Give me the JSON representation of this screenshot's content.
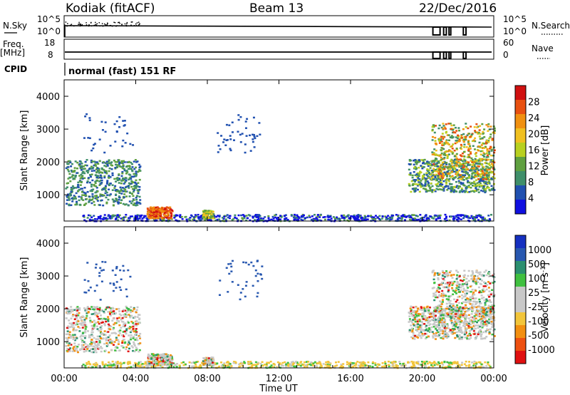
{
  "header": {
    "title": "Kodiak (fitACF)",
    "beam": "Beam 13",
    "date": "22/Dec/2016"
  },
  "params": {
    "nsky_label": "N.Sky",
    "nsky_ticks": [
      "10^5",
      "10^0"
    ],
    "nsearch_label": "N.Search",
    "nsearch_ticks": [
      "10^5",
      "10^0"
    ],
    "freq_label_1": "Freq.",
    "freq_label_2": "[MHz]",
    "freq_ticks": [
      "18",
      "8"
    ],
    "nave_label": "Nave",
    "nave_ticks": [
      "60",
      "0"
    ],
    "cpid_label": "CPID",
    "cpid_text": "normal (fast) 151 RF"
  },
  "colors": {
    "power": [
      "#1010e0",
      "#2050b0",
      "#3f8f6a",
      "#5fa040",
      "#b8d020",
      "#f0c020",
      "#f09010",
      "#e85010",
      "#d01010"
    ],
    "velocity": [
      "#e01010",
      "#ee5010",
      "#f28f10",
      "#f2c53a",
      "#c8c8c8",
      "#c8c8c8",
      "#40c040",
      "#2b8f70",
      "#2858b0",
      "#1530c0"
    ]
  },
  "chart_data": [
    {
      "type": "heatmap",
      "panel": "power",
      "ylabel": "Slant Range [km]",
      "ylim": [
        200,
        4500
      ],
      "yticks": [
        "1000",
        "2000",
        "3000",
        "4000"
      ],
      "xlim": [
        "00:00",
        "24:00"
      ],
      "colorbar_label": "Power [dB]",
      "colorbar_ticks": [
        "4",
        "8",
        "12",
        "16",
        "20",
        "24",
        "28"
      ],
      "scatter_regions": [
        {
          "t": [
            0.05,
            4.2
          ],
          "r": [
            700,
            2100
          ],
          "level": [
            1,
            3
          ]
        },
        {
          "t": [
            4.6,
            6.0
          ],
          "r": [
            300,
            650
          ],
          "level": [
            6,
            8
          ]
        },
        {
          "t": [
            7.7,
            8.3
          ],
          "r": [
            300,
            550
          ],
          "level": [
            3,
            5
          ]
        },
        {
          "t": [
            19.2,
            24.0
          ],
          "r": [
            1100,
            2100
          ],
          "level": [
            1,
            4
          ]
        },
        {
          "t": [
            20.5,
            24.0
          ],
          "r": [
            1500,
            3200
          ],
          "level": [
            2,
            7
          ]
        }
      ]
    },
    {
      "type": "heatmap",
      "panel": "velocity",
      "ylabel": "Slant Range [km]",
      "ylim": [
        200,
        4500
      ],
      "yticks": [
        "1000",
        "2000",
        "3000",
        "4000"
      ],
      "xlim": [
        "00:00",
        "24:00"
      ],
      "xticks": [
        "00:00",
        "04:00",
        "08:00",
        "12:00",
        "16:00",
        "20:00",
        "00:00"
      ],
      "xlabel": "Time UT",
      "colorbar_label": "Velocity [m s^-1]",
      "colorbar_ticks": [
        "1000",
        "500",
        "100",
        "25",
        "-25",
        "-100",
        "-500",
        "-1000"
      ]
    }
  ]
}
